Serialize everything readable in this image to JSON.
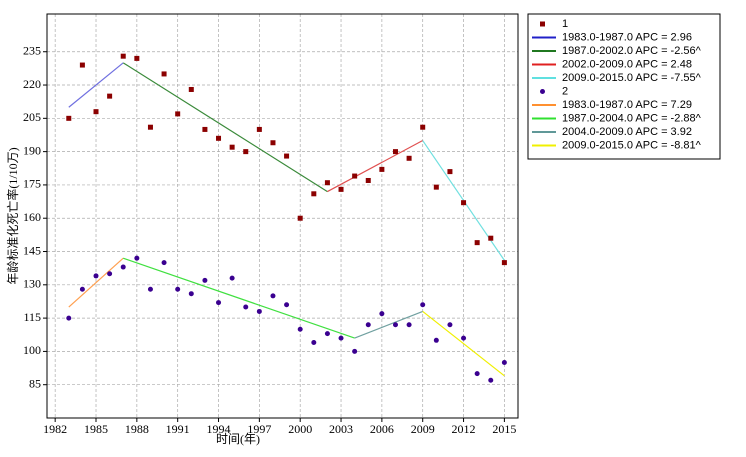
{
  "chart_data": {
    "type": "scatter",
    "xlabel": "时间(年)",
    "ylabel": "年龄标准化死亡率(1/10万)",
    "xlim": [
      1981.4,
      2016
    ],
    "xticks": [
      1982,
      1985,
      1988,
      1991,
      1994,
      1997,
      2000,
      2003,
      2006,
      2009,
      2012,
      2015
    ],
    "ylim": [
      70,
      252
    ],
    "yticks": [
      85,
      100,
      115,
      130,
      145,
      160,
      175,
      190,
      205,
      220,
      235
    ],
    "grid": true,
    "legend": "outside-right",
    "x": [
      1983,
      1984,
      1985,
      1986,
      1987,
      1988,
      1989,
      1990,
      1991,
      1992,
      1993,
      1994,
      1995,
      1996,
      1997,
      1998,
      1999,
      2000,
      2001,
      2002,
      2003,
      2004,
      2005,
      2006,
      2007,
      2008,
      2009,
      2010,
      2011,
      2012,
      2013,
      2014,
      2015
    ],
    "series": [
      {
        "name": "1",
        "color": "#8b0000",
        "marker": "square",
        "values": [
          205,
          229,
          208,
          215,
          233,
          232,
          201,
          225,
          207,
          218,
          200,
          196,
          192,
          190,
          200,
          194,
          188,
          160,
          171,
          176,
          173,
          179,
          177,
          182,
          190,
          187,
          201,
          174,
          181,
          167,
          149,
          151,
          140
        ],
        "segments": [
          {
            "name": "1983.0-1987.0 APC = 2.96",
            "color": "#2020c8",
            "line_color": "#7070e0",
            "x": [
              1983,
              1987
            ],
            "values": [
              210,
              230
            ]
          },
          {
            "name": "1987.0-2002.0 APC = -2.56^",
            "color": "#207820",
            "line_color": "#3a8a3a",
            "x": [
              1987,
              2002
            ],
            "values": [
              230,
              172
            ]
          },
          {
            "name": "2002.0-2009.0 APC = 2.48",
            "color": "#e02020",
            "line_color": "#e05050",
            "x": [
              2002,
              2009
            ],
            "values": [
              172,
              195
            ]
          },
          {
            "name": "2009.0-2015.0 APC = -7.55^",
            "color": "#60e0e0",
            "line_color": "#70e0e0",
            "x": [
              2009,
              2015
            ],
            "values": [
              195,
              141
            ]
          }
        ]
      },
      {
        "name": "2",
        "color": "#3a0090",
        "marker": "circle",
        "values": [
          115,
          128,
          134,
          135,
          138,
          142,
          128,
          140,
          128,
          126,
          132,
          122,
          133,
          120,
          118,
          125,
          121,
          110,
          104,
          108,
          106,
          100,
          112,
          117,
          112,
          112,
          121,
          105,
          112,
          106,
          90,
          87,
          95
        ],
        "segments": [
          {
            "name": "1983.0-1987.0 APC = 7.29",
            "color": "#ff9030",
            "line_color": "#ffa050",
            "x": [
              1983,
              1987
            ],
            "values": [
              120,
              142
            ]
          },
          {
            "name": "1987.0-2004.0 APC = -2.88^",
            "color": "#30e030",
            "line_color": "#40e040",
            "x": [
              1987,
              2004
            ],
            "values": [
              142,
              106
            ]
          },
          {
            "name": "2004.0-2009.0 APC = 3.92",
            "color": "#609898",
            "line_color": "#70a0a0",
            "x": [
              2004,
              2009
            ],
            "values": [
              106,
              118
            ]
          },
          {
            "name": "2009.0-2015.0 APC = -8.81^",
            "color": "#f0f000",
            "line_color": "#f0f000",
            "x": [
              2009,
              2015
            ],
            "values": [
              118,
              89
            ]
          }
        ]
      }
    ]
  }
}
